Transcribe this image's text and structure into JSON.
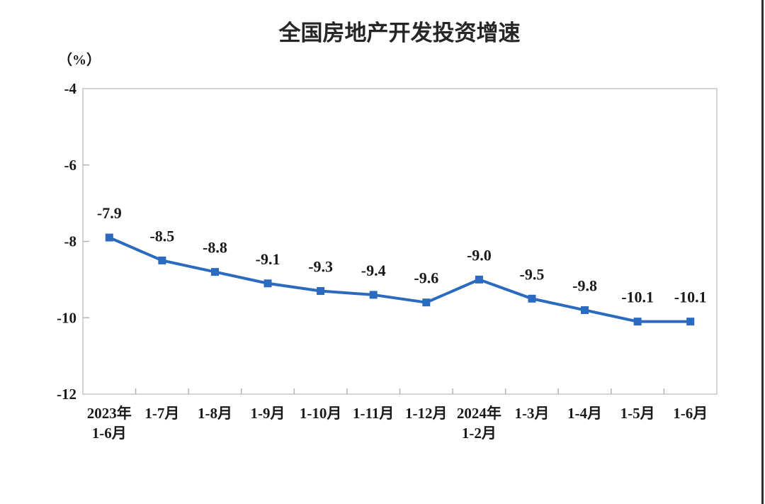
{
  "page": {
    "right_edge_color": "#2f2f2f",
    "background_color": "#ffffff"
  },
  "chart_data": {
    "type": "line",
    "title": "全国房地产开发投资增速",
    "unit_label": "（%）",
    "categories": [
      "2023年\n1-6月",
      "1-7月",
      "1-8月",
      "1-9月",
      "1-10月",
      "1-11月",
      "1-12月",
      "2024年\n1-2月",
      "1-3月",
      "1-4月",
      "1-5月",
      "1-6月"
    ],
    "values": [
      -7.9,
      -8.5,
      -8.8,
      -9.1,
      -9.3,
      -9.4,
      -9.6,
      -9.0,
      -9.5,
      -9.8,
      -10.1,
      -10.1
    ],
    "ylim": [
      -12,
      -4
    ],
    "yticks": [
      -4,
      -6,
      -8,
      -10,
      -12
    ],
    "grid": false,
    "legend": "none",
    "marker": "square",
    "line_color": "#2a6bbf",
    "marker_color": "#2a6bbf",
    "axis_box_color": "#c6c6c6",
    "tick_color": "#b3b3b3",
    "text_color": "#1a1a1a"
  }
}
